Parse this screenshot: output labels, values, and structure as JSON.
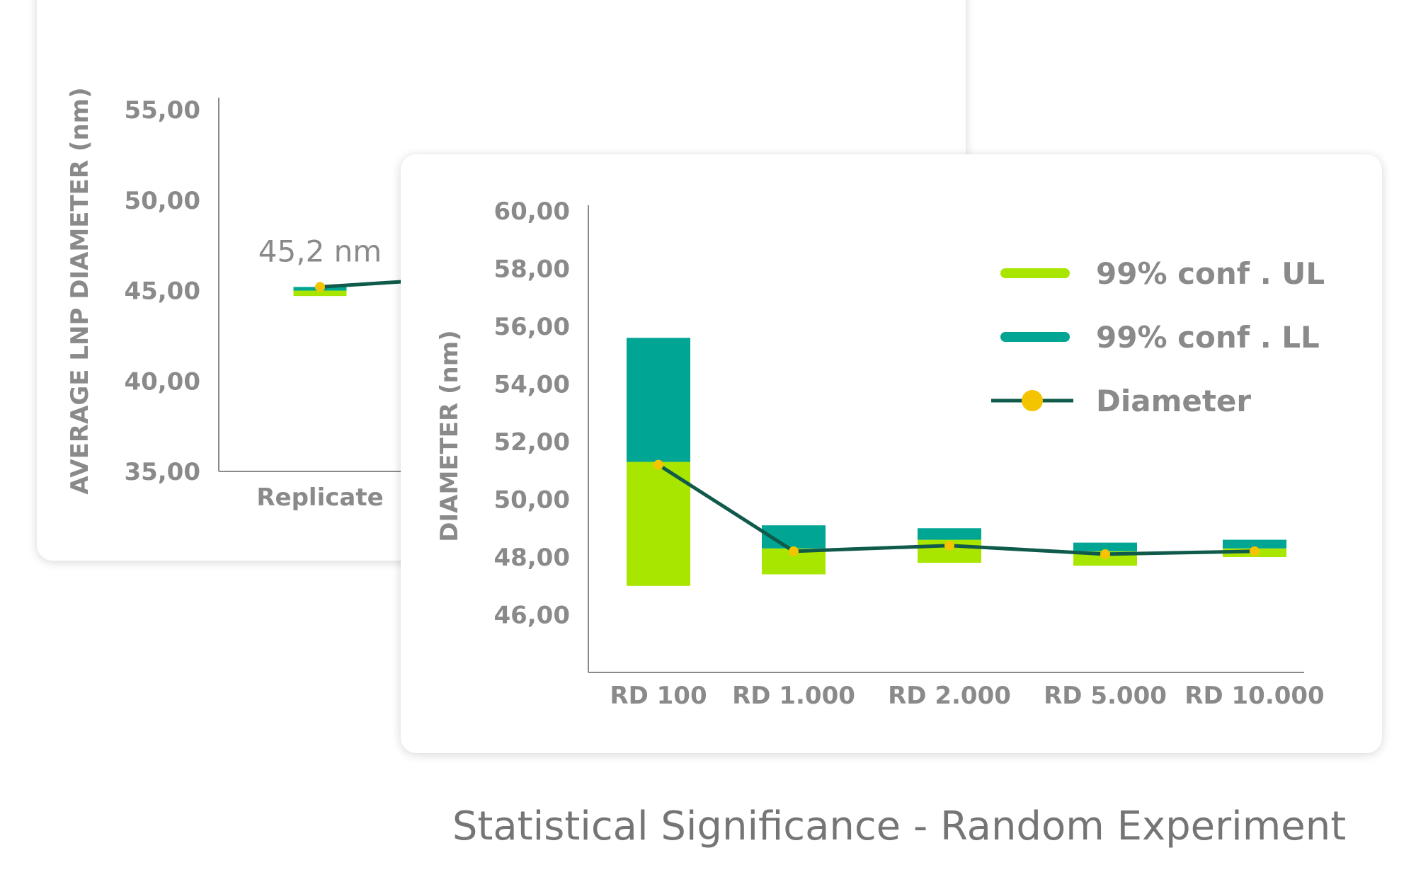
{
  "colors": {
    "ul": "#a8e600",
    "ll": "#00a593",
    "line": "#0f5a4a",
    "marker": "#f5c400",
    "axis": "#8a8a8a"
  },
  "caption": "Statistical Significance -  Random Experiment",
  "chart_data": [
    {
      "type": "bar",
      "title": "",
      "xlabel": "",
      "ylabel": "AVERAGE LNP DIAMETER  (nm)",
      "ylim": [
        35,
        55
      ],
      "yticks": [
        "35,00",
        "40,00",
        "45,00",
        "50,00",
        "55,00"
      ],
      "categories": [
        "Replicate"
      ],
      "series": [
        {
          "name": "",
          "kind": "range",
          "lower": [
            44.7
          ],
          "upper": [
            45.0
          ],
          "color": "ul"
        },
        {
          "name": "",
          "kind": "range",
          "lower": [
            45.0
          ],
          "upper": [
            45.2
          ],
          "color": "ll"
        },
        {
          "name": "",
          "kind": "line",
          "values": [
            45.2
          ]
        }
      ],
      "annotations": [
        "45,2 nm"
      ],
      "grid": false,
      "note_partial": "chart continues behind the front card"
    },
    {
      "type": "bar",
      "title": "",
      "xlabel": "",
      "ylabel": "DIAMETER (nm)",
      "ylim": [
        44,
        60
      ],
      "yticks": [
        "46,00",
        "48,00",
        "50,00",
        "52,00",
        "54,00",
        "56,00",
        "58,00",
        "60,00"
      ],
      "categories": [
        "RD 100",
        "RD 1.000",
        "RD 2.000",
        "RD 5.000",
        "RD 10.000"
      ],
      "series": [
        {
          "name": "99% conf . UL",
          "kind": "range",
          "lower": [
            47.0,
            47.4,
            47.8,
            47.7,
            48.0
          ],
          "upper": [
            51.3,
            48.3,
            48.6,
            48.2,
            48.3
          ],
          "color": "ul"
        },
        {
          "name": "99% conf . LL",
          "kind": "range",
          "lower": [
            51.3,
            48.3,
            48.6,
            48.2,
            48.3
          ],
          "upper": [
            55.6,
            49.1,
            49.0,
            48.5,
            48.6
          ],
          "color": "ll"
        },
        {
          "name": "Diameter",
          "kind": "line",
          "values": [
            51.2,
            48.2,
            48.4,
            48.1,
            48.2
          ]
        }
      ],
      "legend_position": "top-right",
      "grid": false
    }
  ]
}
